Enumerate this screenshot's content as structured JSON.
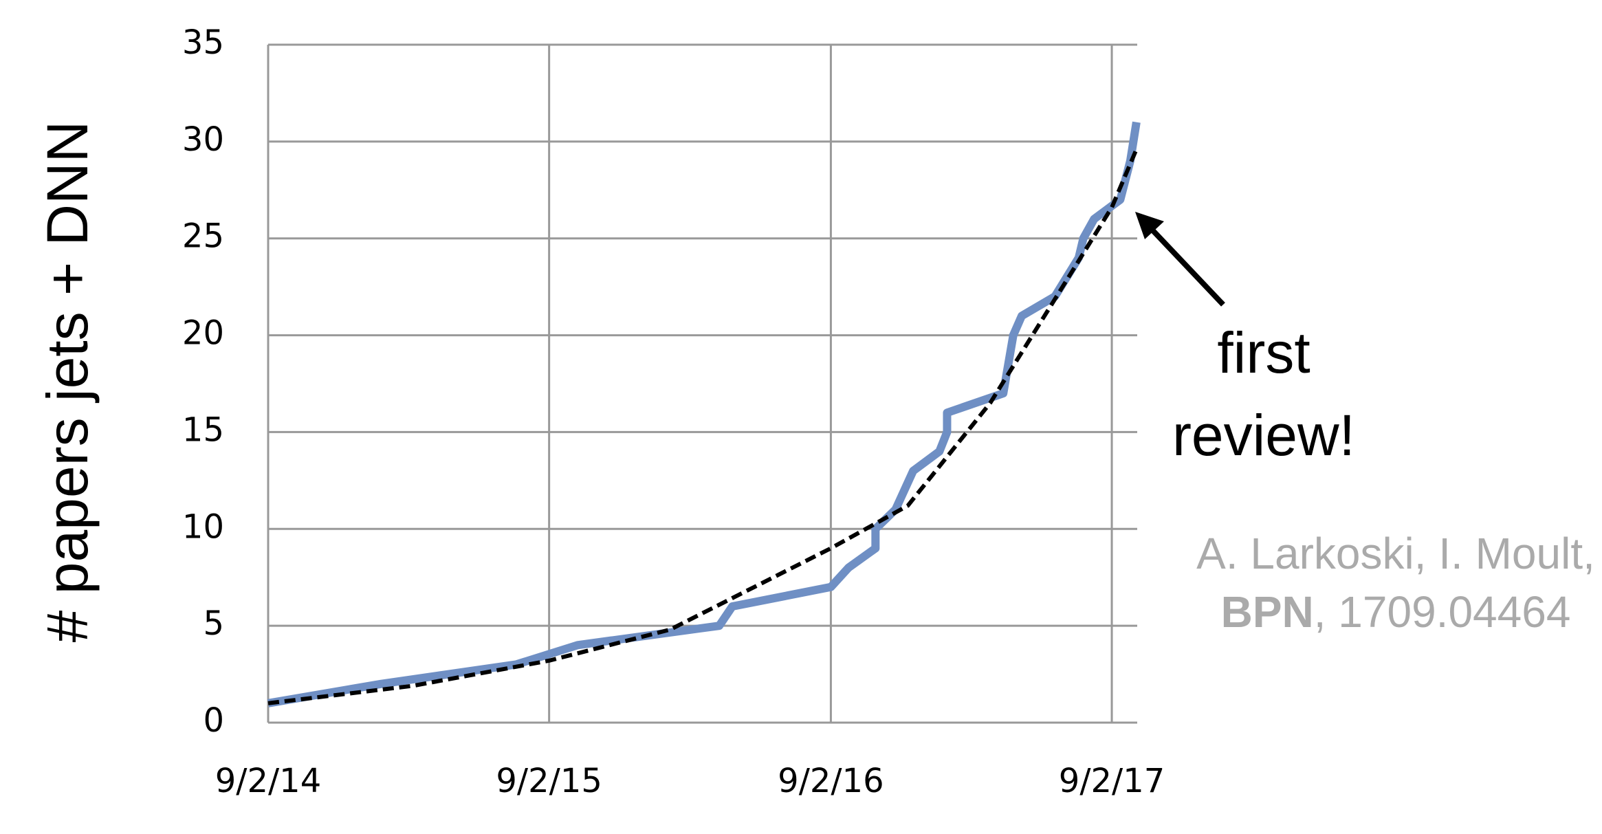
{
  "chart_data": {
    "type": "line",
    "y_label": "# papers jets + DNN",
    "x": null,
    "xlim": [
      "9/2/14",
      "10/5/17"
    ],
    "xticks": [
      "9/2/14",
      "9/2/15",
      "9/2/16",
      "9/2/17"
    ],
    "ylim": [
      0,
      35
    ],
    "yticks": [
      0,
      5,
      10,
      15,
      20,
      25,
      30,
      35
    ],
    "grid": true,
    "series": [
      {
        "color": "#6f8fc4",
        "line_style": "solid",
        "x": [
          "9/2/14",
          "1/27/15",
          "7/21/15",
          "10/9/15",
          "4/10/16",
          "4/27/16",
          "9/2/16",
          "9/25/16",
          "10/30/16",
          "10/30/16",
          "11/25/16",
          "12/18/16",
          "1/21/17",
          "1/31/17",
          "1/31/17",
          "4/14/17",
          "4/27/17",
          "5/8/17",
          "6/20/17",
          "7/21/17",
          "7/27/17",
          "8/10/17",
          "9/13/17",
          "9/26/17",
          "10/4/17"
        ],
        "values": [
          1,
          2,
          3,
          4,
          5,
          6,
          7,
          8,
          9,
          10,
          11,
          13,
          14,
          15,
          16,
          17,
          20,
          21,
          22,
          24,
          25,
          26,
          27,
          29,
          31
        ]
      },
      {
        "color": "#000000",
        "line_style": "dashed",
        "x": [
          "9/2/14",
          "3/9/15",
          "9/2/15",
          "2/6/16",
          "9/2/16",
          "12/11/16",
          "3/28/17",
          "6/16/17",
          "9/2/17",
          "10/4/17"
        ],
        "values": [
          1.0,
          1.9,
          3.2,
          4.8,
          9,
          11.2,
          16.5,
          21.6,
          26.6,
          29.6
        ]
      }
    ],
    "annotation": {
      "lines": [
        "first",
        "review!"
      ]
    },
    "citation": {
      "authors": "A. Larkoski, I. Moult,",
      "bold": "BPN",
      "rest": ", 1709.04464"
    }
  }
}
